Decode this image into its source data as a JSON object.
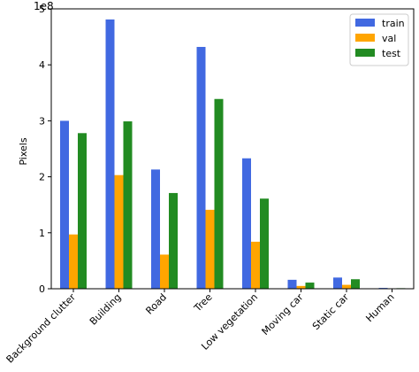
{
  "chart_data": {
    "type": "bar",
    "title": "",
    "xlabel": "",
    "ylabel": "Pixels",
    "offset_text": "1e8",
    "ylim": [
      0,
      5
    ],
    "yticks": [
      "0",
      "1",
      "2",
      "3",
      "4",
      "5"
    ],
    "y_multiplier": 100000000,
    "categories": [
      "Background clutter",
      "Building",
      "Road",
      "Tree",
      "Low vegetation",
      "Moving car",
      "Static car",
      "Human"
    ],
    "series": [
      {
        "name": "train",
        "color": "#4169E1",
        "values": [
          3.0,
          4.81,
          2.13,
          4.32,
          2.33,
          0.16,
          0.2,
          0.015
        ]
      },
      {
        "name": "val",
        "color": "#FFA500",
        "values": [
          0.97,
          2.03,
          0.61,
          1.41,
          0.84,
          0.05,
          0.07,
          0.005
        ]
      },
      {
        "name": "test",
        "color": "#228B22",
        "values": [
          2.78,
          2.99,
          1.71,
          3.39,
          1.61,
          0.11,
          0.17,
          0.01
        ]
      }
    ],
    "legend_position": "top-right",
    "grid": false
  }
}
